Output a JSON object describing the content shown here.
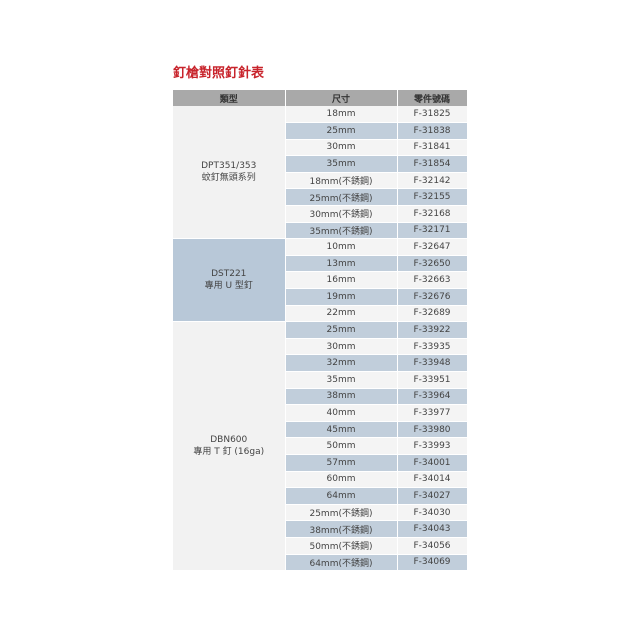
{
  "title": "釘槍對照釘針表",
  "headers": [
    "類型",
    "尺寸",
    "零件號碼"
  ],
  "colors": {
    "title": "#c8242c",
    "header_bg": "#a9a9a9",
    "stripe": "#c1cedb",
    "group_highlight": "#b8c8d8"
  },
  "groups": [
    {
      "name_line1": "DPT351/353",
      "name_line2": "蚊釘無頭系列",
      "highlight": false,
      "rows": [
        [
          "18mm",
          "F-31825"
        ],
        [
          "25mm",
          "F-31838"
        ],
        [
          "30mm",
          "F-31841"
        ],
        [
          "35mm",
          "F-31854"
        ],
        [
          "18mm(不銹鋼)",
          "F-32142"
        ],
        [
          "25mm(不銹鋼)",
          "F-32155"
        ],
        [
          "30mm(不銹鋼)",
          "F-32168"
        ],
        [
          "35mm(不銹鋼)",
          "F-32171"
        ]
      ]
    },
    {
      "name_line1": "DST221",
      "name_line2": "專用 U 型釘",
      "highlight": true,
      "rows": [
        [
          "10mm",
          "F-32647"
        ],
        [
          "13mm",
          "F-32650"
        ],
        [
          "16mm",
          "F-32663"
        ],
        [
          "19mm",
          "F-32676"
        ],
        [
          "22mm",
          "F-32689"
        ]
      ]
    },
    {
      "name_line1": "DBN600",
      "name_line2": "專用 T 釘 (16ga)",
      "highlight": false,
      "rows": [
        [
          "25mm",
          "F-33922"
        ],
        [
          "30mm",
          "F-33935"
        ],
        [
          "32mm",
          "F-33948"
        ],
        [
          "35mm",
          "F-33951"
        ],
        [
          "38mm",
          "F-33964"
        ],
        [
          "40mm",
          "F-33977"
        ],
        [
          "45mm",
          "F-33980"
        ],
        [
          "50mm",
          "F-33993"
        ],
        [
          "57mm",
          "F-34001"
        ],
        [
          "60mm",
          "F-34014"
        ],
        [
          "64mm",
          "F-34027"
        ],
        [
          "25mm(不銹鋼)",
          "F-34030"
        ],
        [
          "38mm(不銹鋼)",
          "F-34043"
        ],
        [
          "50mm(不銹鋼)",
          "F-34056"
        ],
        [
          "64mm(不銹鋼)",
          "F-34069"
        ]
      ]
    }
  ]
}
